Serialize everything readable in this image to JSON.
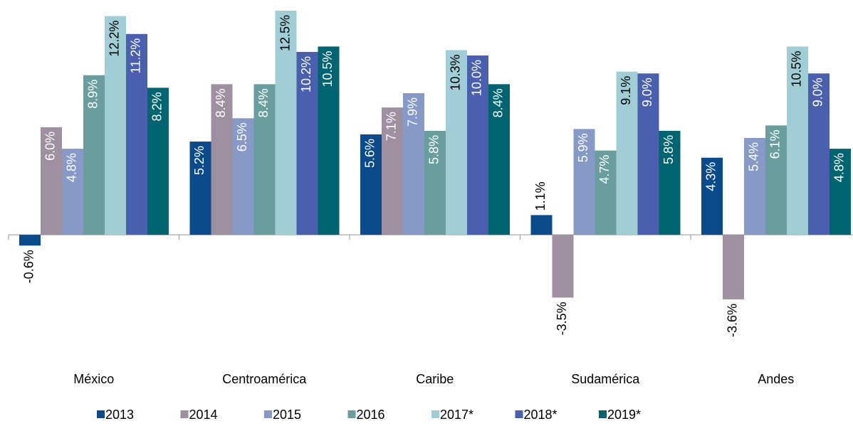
{
  "chart_data": {
    "type": "bar",
    "categories": [
      "México",
      "Centroamérica",
      "Caribe",
      "Sudamérica",
      "Andes"
    ],
    "ylim": [
      -4,
      12.5
    ],
    "series": [
      {
        "name": "2013",
        "color": "#0b4a8b",
        "values": [
          -0.6,
          5.2,
          5.6,
          1.1,
          4.3
        ],
        "value_labels": [
          "-0.6%",
          "5.2%",
          "5.6%",
          "1.1%",
          "4.3%"
        ]
      },
      {
        "name": "2014",
        "color": "#9e8fa1",
        "values": [
          6.0,
          8.4,
          7.1,
          -3.5,
          -3.6
        ],
        "value_labels": [
          "6.0%",
          "8.4%",
          "7.1%",
          "-3.5%",
          "-3.6%"
        ]
      },
      {
        "name": "2015",
        "color": "#8799c7",
        "values": [
          4.8,
          6.5,
          7.9,
          5.9,
          5.4
        ],
        "value_labels": [
          "4.8%",
          "6.5%",
          "7.9%",
          "5.9%",
          "5.4%"
        ]
      },
      {
        "name": "2016",
        "color": "#6a9e9e",
        "values": [
          8.9,
          8.4,
          5.8,
          4.7,
          6.1
        ],
        "value_labels": [
          "8.9%",
          "8.4%",
          "5.8%",
          "4.7%",
          "6.1%"
        ]
      },
      {
        "name": "2017*",
        "color": "#a0cdd6",
        "values": [
          12.2,
          12.5,
          10.3,
          9.1,
          10.5
        ],
        "value_labels": [
          "12.2%",
          "12.5%",
          "10.3%",
          "9.1%",
          "10.5%"
        ]
      },
      {
        "name": "2018*",
        "color": "#4a5fae",
        "values": [
          11.2,
          10.2,
          10.0,
          9.0,
          9.0
        ],
        "value_labels": [
          "11.2%",
          "10.2%",
          "10.0%",
          "9.0%",
          "9.0%"
        ]
      },
      {
        "name": "2019*",
        "color": "#006570",
        "values": [
          8.2,
          10.5,
          8.4,
          5.8,
          4.8
        ],
        "value_labels": [
          "8.2%",
          "10.5%",
          "8.4%",
          "5.8%",
          "4.8%"
        ]
      }
    ]
  }
}
